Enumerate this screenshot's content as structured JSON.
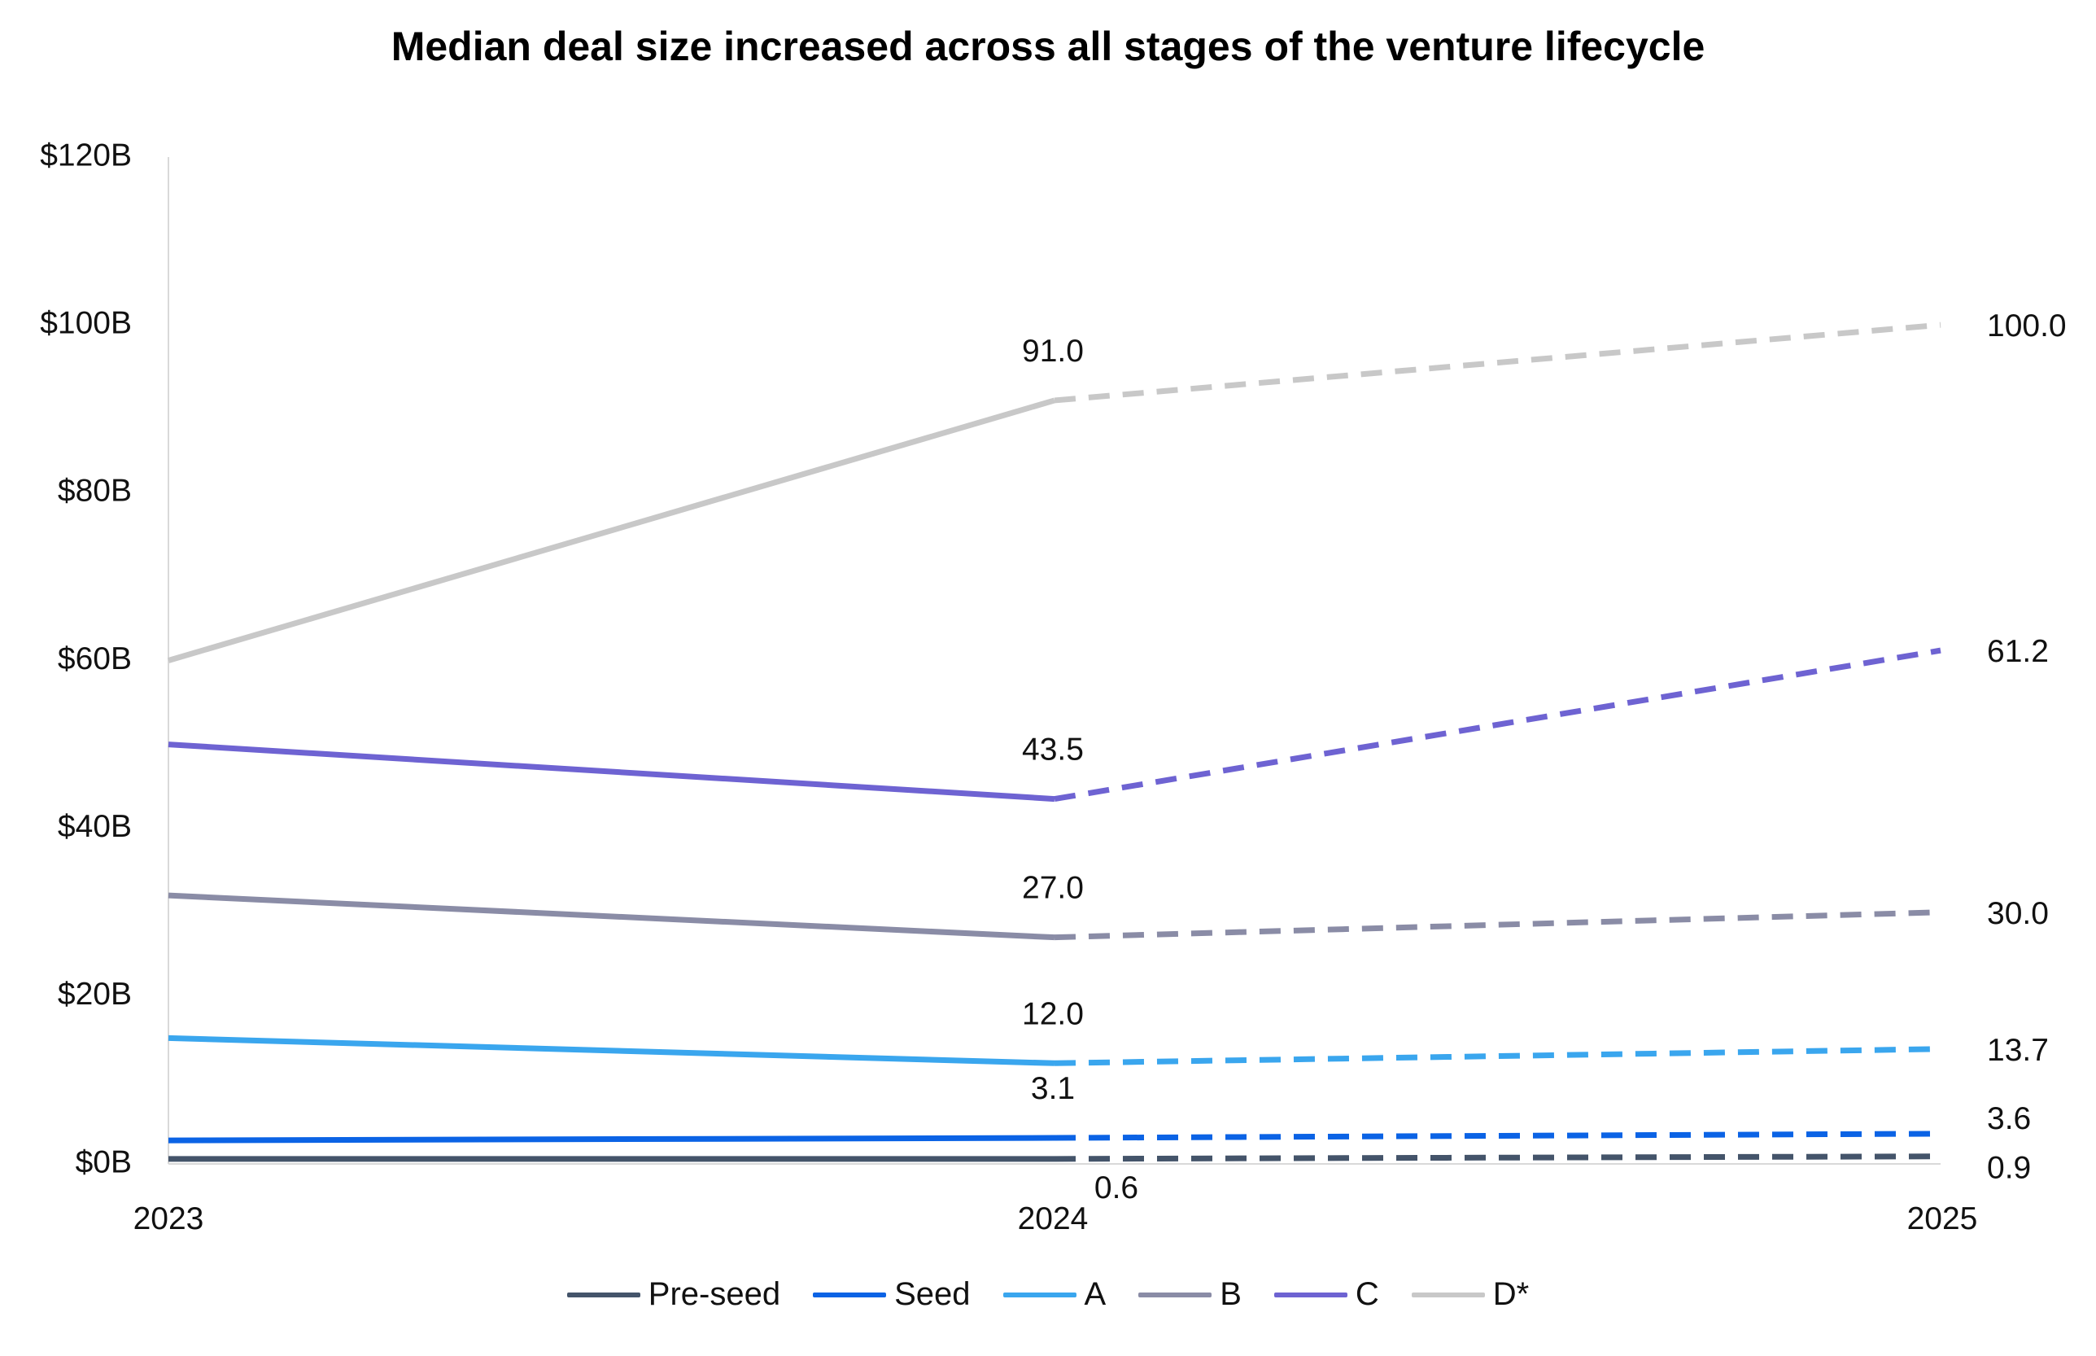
{
  "chart_data": {
    "type": "line",
    "title": "Median deal size increased across all stages of the venture lifecycle",
    "xlabel": "",
    "ylabel": "",
    "x": [
      "2023",
      "2024",
      "2025"
    ],
    "ylim": [
      0,
      120
    ],
    "yticks": [
      {
        "value": 0,
        "label": "$0B"
      },
      {
        "value": 20,
        "label": "$20B"
      },
      {
        "value": 40,
        "label": "$40B"
      },
      {
        "value": 60,
        "label": "$60B"
      },
      {
        "value": 80,
        "label": "$80B"
      },
      {
        "value": 100,
        "label": "$100B"
      },
      {
        "value": 120,
        "label": "$120B"
      }
    ],
    "grid": false,
    "legend_position": "bottom",
    "solid_segment": "2023-2024",
    "dashed_segment": "2024-2025",
    "series": [
      {
        "name": "Pre-seed",
        "color": "#44546A",
        "values": [
          0.6,
          0.6,
          0.9
        ],
        "labels": [
          null,
          "0.6",
          "0.9"
        ]
      },
      {
        "name": "Seed",
        "color": "#0B63E5",
        "values": [
          2.8,
          3.1,
          3.6
        ],
        "labels": [
          null,
          "3.1",
          "3.6"
        ]
      },
      {
        "name": "A",
        "color": "#3AA6EE",
        "values": [
          15.0,
          12.0,
          13.7
        ],
        "labels": [
          null,
          "12.0",
          "13.7"
        ]
      },
      {
        "name": "B",
        "color": "#8A8CA6",
        "values": [
          32.0,
          27.0,
          30.0
        ],
        "labels": [
          null,
          "27.0",
          "30.0"
        ]
      },
      {
        "name": "C",
        "color": "#6E63D2",
        "values": [
          50.0,
          43.5,
          61.2
        ],
        "labels": [
          null,
          "43.5",
          "61.2"
        ]
      },
      {
        "name": "D*",
        "color": "#C8C8C8",
        "values": [
          60.0,
          91.0,
          100.0
        ],
        "labels": [
          null,
          "91.0",
          "100.0"
        ]
      }
    ]
  }
}
